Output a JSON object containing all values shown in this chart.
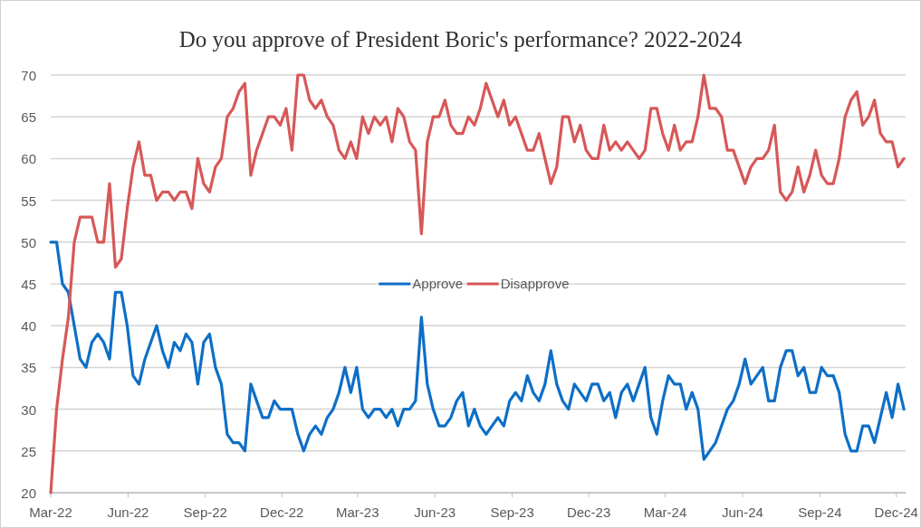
{
  "chart_data": {
    "type": "line",
    "title": "Do you approve of President Boric's performance? 2022-2024",
    "x": [
      "2022-03-01",
      "2022-03-08",
      "2022-03-15",
      "2022-03-22",
      "2022-03-29",
      "2022-04-05",
      "2022-04-12",
      "2022-04-19",
      "2022-04-26",
      "2022-05-03",
      "2022-05-10",
      "2022-05-17",
      "2022-05-24",
      "2022-05-31",
      "2022-06-07",
      "2022-06-14",
      "2022-06-21",
      "2022-06-28",
      "2022-07-05",
      "2022-07-12",
      "2022-07-19",
      "2022-07-26",
      "2022-08-02",
      "2022-08-09",
      "2022-08-16",
      "2022-08-23",
      "2022-08-30",
      "2022-09-06",
      "2022-09-13",
      "2022-09-20",
      "2022-09-27",
      "2022-10-04",
      "2022-10-11",
      "2022-10-18",
      "2022-10-25",
      "2022-11-01",
      "2022-11-08",
      "2022-11-15",
      "2022-11-22",
      "2022-11-29",
      "2022-12-06",
      "2022-12-13",
      "2022-12-20",
      "2022-12-27",
      "2023-01-03",
      "2023-01-10",
      "2023-01-17",
      "2023-01-24",
      "2023-01-31",
      "2023-02-07",
      "2023-02-14",
      "2023-02-21",
      "2023-02-28",
      "2023-03-07",
      "2023-03-14",
      "2023-03-21",
      "2023-03-28",
      "2023-04-04",
      "2023-04-11",
      "2023-04-18",
      "2023-04-25",
      "2023-05-02",
      "2023-05-09",
      "2023-05-16",
      "2023-05-23",
      "2023-05-30",
      "2023-06-06",
      "2023-06-13",
      "2023-06-20",
      "2023-06-27",
      "2023-07-04",
      "2023-07-11",
      "2023-07-18",
      "2023-07-25",
      "2023-08-01",
      "2023-08-08",
      "2023-08-15",
      "2023-08-22",
      "2023-08-29",
      "2023-09-05",
      "2023-09-12",
      "2023-09-19",
      "2023-09-26",
      "2023-10-03",
      "2023-10-10",
      "2023-10-17",
      "2023-10-24",
      "2023-10-31",
      "2023-11-07",
      "2023-11-14",
      "2023-11-21",
      "2023-11-28",
      "2023-12-05",
      "2023-12-12",
      "2023-12-19",
      "2023-12-26",
      "2024-01-02",
      "2024-01-09",
      "2024-01-16",
      "2024-01-23",
      "2024-01-30",
      "2024-02-06",
      "2024-02-13",
      "2024-02-20",
      "2024-02-27",
      "2024-03-05",
      "2024-03-12",
      "2024-03-19",
      "2024-03-26",
      "2024-04-02",
      "2024-04-09",
      "2024-04-16",
      "2024-04-23",
      "2024-04-30",
      "2024-05-07",
      "2024-05-14",
      "2024-05-21",
      "2024-05-28",
      "2024-06-04",
      "2024-06-11",
      "2024-06-18",
      "2024-06-25",
      "2024-07-02",
      "2024-07-09",
      "2024-07-16",
      "2024-07-23",
      "2024-07-30",
      "2024-08-06",
      "2024-08-13",
      "2024-08-20",
      "2024-08-27",
      "2024-09-03",
      "2024-09-10",
      "2024-09-17",
      "2024-09-24",
      "2024-10-01",
      "2024-10-08",
      "2024-10-15",
      "2024-10-22",
      "2024-10-29",
      "2024-11-05",
      "2024-11-12",
      "2024-11-19",
      "2024-11-26",
      "2024-12-03",
      "2024-12-10"
    ],
    "series": [
      {
        "name": "Approve",
        "color": "#0e6fc6",
        "values": [
          50,
          50,
          45,
          44,
          40,
          36,
          35,
          38,
          39,
          38,
          36,
          44,
          44,
          40,
          34,
          33,
          36,
          38,
          40,
          37,
          35,
          38,
          37,
          39,
          38,
          33,
          38,
          39,
          35,
          33,
          27,
          26,
          26,
          25,
          33,
          31,
          29,
          29,
          31,
          30,
          30,
          30,
          27,
          25,
          27,
          28,
          27,
          29,
          30,
          32,
          35,
          32,
          35,
          30,
          29,
          30,
          30,
          29,
          30,
          28,
          30,
          30,
          31,
          41,
          33,
          30,
          28,
          28,
          29,
          31,
          32,
          28,
          30,
          28,
          27,
          28,
          29,
          28,
          31,
          32,
          31,
          34,
          32,
          31,
          33,
          37,
          33,
          31,
          30,
          33,
          32,
          31,
          33,
          33,
          31,
          32,
          29,
          32,
          33,
          31,
          33,
          35,
          29,
          27,
          31,
          34,
          33,
          33,
          30,
          32,
          30,
          24,
          25,
          26,
          28,
          30,
          31,
          33,
          36,
          33,
          34,
          35,
          31,
          31,
          35,
          37,
          37,
          34,
          35,
          32,
          32,
          35,
          34,
          34,
          32,
          27,
          25,
          25,
          28,
          28,
          26,
          29,
          32,
          29,
          33,
          30
        ]
      },
      {
        "name": "Disapprove",
        "color": "#d75858",
        "values": [
          20,
          30,
          36,
          41,
          50,
          53,
          53,
          53,
          50,
          50,
          57,
          47,
          48,
          54,
          59,
          62,
          58,
          58,
          55,
          56,
          56,
          55,
          56,
          56,
          54,
          60,
          57,
          56,
          59,
          60,
          65,
          66,
          68,
          69,
          58,
          61,
          63,
          65,
          65,
          64,
          66,
          61,
          70,
          70,
          67,
          66,
          67,
          65,
          64,
          61,
          60,
          62,
          60,
          65,
          63,
          65,
          64,
          65,
          62,
          66,
          65,
          62,
          61,
          51,
          62,
          65,
          65,
          67,
          64,
          63,
          63,
          65,
          64,
          66,
          69,
          67,
          65,
          67,
          64,
          65,
          63,
          61,
          61,
          63,
          60,
          57,
          59,
          65,
          65,
          62,
          64,
          61,
          60,
          60,
          64,
          61,
          62,
          61,
          62,
          61,
          60,
          61,
          66,
          66,
          63,
          61,
          64,
          61,
          62,
          62,
          65,
          70,
          66,
          66,
          65,
          61,
          61,
          59,
          57,
          59,
          60,
          60,
          61,
          64,
          56,
          55,
          56,
          59,
          56,
          58,
          61,
          58,
          57,
          57,
          60,
          65,
          67,
          68,
          64,
          65,
          67,
          63,
          62,
          62,
          59,
          60
        ]
      }
    ],
    "xlim": [
      "2022-03-01",
      "2024-12-12"
    ],
    "xticks": [
      {
        "value": "2022-03-01",
        "label": "Mar-22"
      },
      {
        "value": "2022-06-01",
        "label": "Jun-22"
      },
      {
        "value": "2022-09-01",
        "label": "Sep-22"
      },
      {
        "value": "2022-12-01",
        "label": "Dec-22"
      },
      {
        "value": "2023-03-01",
        "label": "Mar-23"
      },
      {
        "value": "2023-06-01",
        "label": "Jun-23"
      },
      {
        "value": "2023-09-01",
        "label": "Sep-23"
      },
      {
        "value": "2023-12-01",
        "label": "Dec-23"
      },
      {
        "value": "2024-03-01",
        "label": "Mar-24"
      },
      {
        "value": "2024-06-01",
        "label": "Jun-24"
      },
      {
        "value": "2024-09-01",
        "label": "Sep-24"
      },
      {
        "value": "2024-12-01",
        "label": "Dec-24"
      }
    ],
    "ylim": [
      20,
      70
    ],
    "yticks": [
      20,
      25,
      30,
      35,
      40,
      45,
      50,
      55,
      60,
      65,
      70
    ],
    "grid": "y",
    "legend": "center"
  }
}
